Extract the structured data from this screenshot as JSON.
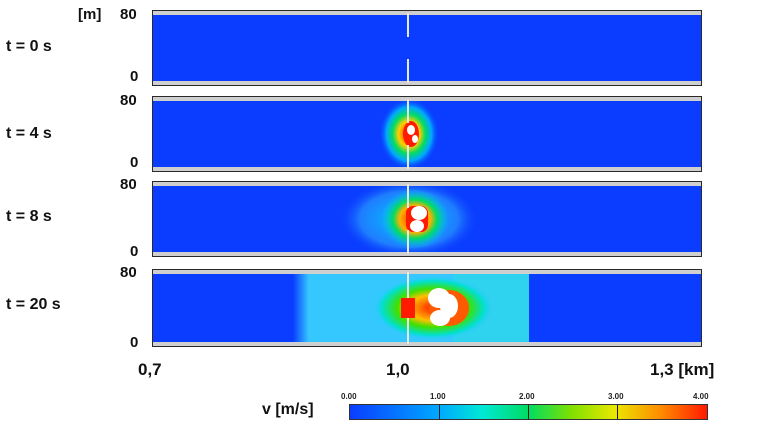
{
  "y_unit": "[m]",
  "time_labels": [
    "t = 0 s",
    "t = 4 s",
    "t = 8 s",
    "t = 20 s"
  ],
  "y_ticks": {
    "top": "80",
    "bottom": "0"
  },
  "x_ticks": {
    "left": "0,7",
    "mid": "1,0",
    "right": "1,3 [km]"
  },
  "colorbar": {
    "label": "v [m/s]",
    "ticks": [
      "0.00",
      "1.00",
      "2.00",
      "3.00",
      "4.00"
    ],
    "colors": [
      "#0a3dff",
      "#00a9ff",
      "#00e8d6",
      "#00dc62",
      "#7fe000",
      "#e9e800",
      "#ff8c00",
      "#ff1a00"
    ]
  },
  "colors": {
    "background_flow": "#0a3dff",
    "walls": "#cccccc",
    "bubble": "#ffffff"
  }
}
